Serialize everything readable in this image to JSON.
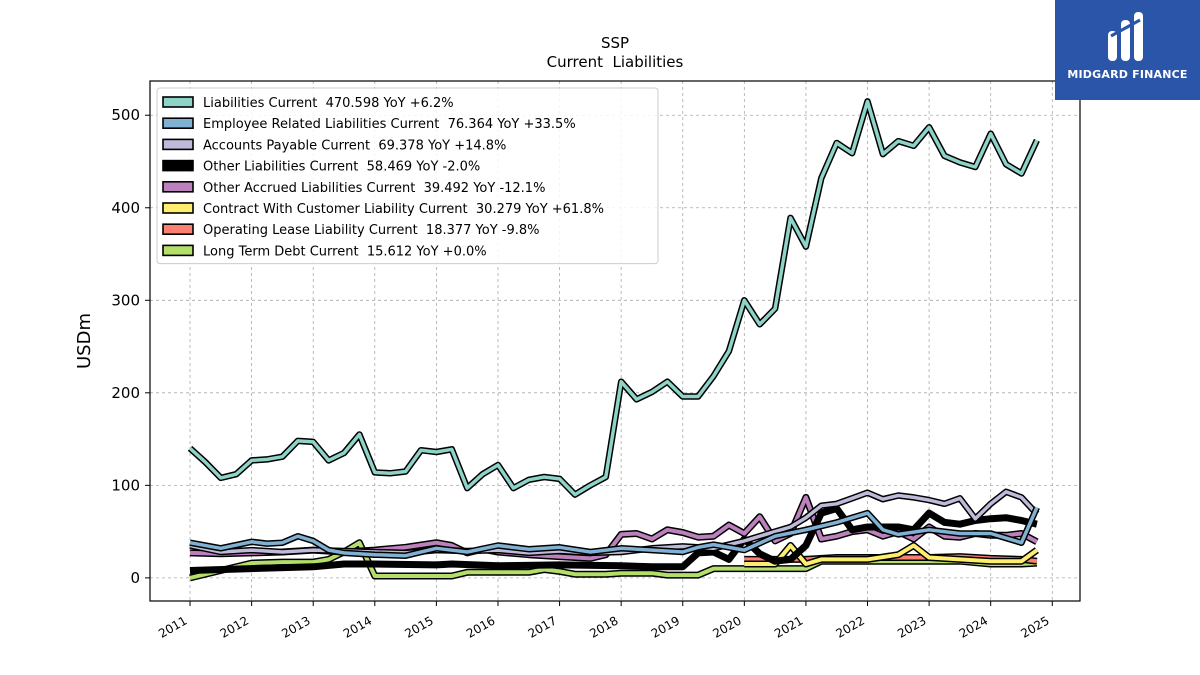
{
  "brand": {
    "name": "MIDGARD FINANCE",
    "color": "#2a55a8"
  },
  "chart_data": {
    "type": "line",
    "title": "SSP",
    "subtitle": "Current  Liabilities",
    "xlabel": "",
    "ylabel": "USDm",
    "xlim": [
      2010.35,
      2025.45
    ],
    "ylim": [
      -25,
      537
    ],
    "xticks": [
      "2011",
      "2012",
      "2013",
      "2014",
      "2015",
      "2016",
      "2017",
      "2018",
      "2019",
      "2020",
      "2021",
      "2022",
      "2023",
      "2024",
      "2025"
    ],
    "yticks": [
      "0",
      "100",
      "200",
      "300",
      "400",
      "500"
    ],
    "grid": true,
    "legend_position": "top-left",
    "series": [
      {
        "name": "Liabilities Current  470.598 YoY +6.2%",
        "color": "#8dd3c7",
        "points": [
          [
            2011.0,
            140
          ],
          [
            2011.25,
            125
          ],
          [
            2011.5,
            108
          ],
          [
            2011.75,
            112
          ],
          [
            2012.0,
            127
          ],
          [
            2012.25,
            128
          ],
          [
            2012.5,
            131
          ],
          [
            2012.75,
            148
          ],
          [
            2013.0,
            147
          ],
          [
            2013.25,
            127
          ],
          [
            2013.5,
            135
          ],
          [
            2013.75,
            155
          ],
          [
            2014.0,
            114
          ],
          [
            2014.25,
            113
          ],
          [
            2014.5,
            115
          ],
          [
            2014.75,
            138
          ],
          [
            2015.0,
            136
          ],
          [
            2015.25,
            139
          ],
          [
            2015.5,
            97
          ],
          [
            2015.75,
            112
          ],
          [
            2016.0,
            122
          ],
          [
            2016.25,
            97
          ],
          [
            2016.5,
            106
          ],
          [
            2016.75,
            109
          ],
          [
            2017.0,
            107
          ],
          [
            2017.25,
            90
          ],
          [
            2017.5,
            100
          ],
          [
            2017.75,
            109
          ],
          [
            2018.0,
            212
          ],
          [
            2018.25,
            193
          ],
          [
            2018.5,
            201
          ],
          [
            2018.75,
            212
          ],
          [
            2019.0,
            196
          ],
          [
            2019.25,
            196
          ],
          [
            2019.5,
            218
          ],
          [
            2019.75,
            245
          ],
          [
            2020.0,
            300
          ],
          [
            2020.25,
            274
          ],
          [
            2020.5,
            291
          ],
          [
            2020.75,
            389
          ],
          [
            2021.0,
            358
          ],
          [
            2021.25,
            432
          ],
          [
            2021.5,
            470
          ],
          [
            2021.75,
            459
          ],
          [
            2022.0,
            515
          ],
          [
            2022.25,
            458
          ],
          [
            2022.5,
            472
          ],
          [
            2022.75,
            467
          ],
          [
            2023.0,
            487
          ],
          [
            2023.25,
            456
          ],
          [
            2023.5,
            449
          ],
          [
            2023.75,
            444
          ],
          [
            2024.0,
            480
          ],
          [
            2024.25,
            447
          ],
          [
            2024.5,
            437
          ],
          [
            2024.75,
            473
          ]
        ]
      },
      {
        "name": "Employee Related Liabilities Current  76.364 YoY +33.5%",
        "color": "#80b1d3",
        "points": [
          [
            2011.0,
            38
          ],
          [
            2011.5,
            32
          ],
          [
            2012.0,
            39
          ],
          [
            2012.25,
            37
          ],
          [
            2012.5,
            38
          ],
          [
            2012.75,
            45
          ],
          [
            2013.0,
            40
          ],
          [
            2013.25,
            30
          ],
          [
            2013.5,
            27
          ],
          [
            2014.0,
            25
          ],
          [
            2014.5,
            24
          ],
          [
            2015.0,
            32
          ],
          [
            2015.5,
            28
          ],
          [
            2016.0,
            35
          ],
          [
            2016.5,
            31
          ],
          [
            2017.0,
            33
          ],
          [
            2017.5,
            28
          ],
          [
            2018.0,
            32
          ],
          [
            2018.5,
            30
          ],
          [
            2019.0,
            28
          ],
          [
            2019.25,
            33
          ],
          [
            2019.5,
            36
          ],
          [
            2020.0,
            30
          ],
          [
            2020.5,
            45
          ],
          [
            2021.0,
            52
          ],
          [
            2021.5,
            60
          ],
          [
            2022.0,
            70
          ],
          [
            2022.25,
            52
          ],
          [
            2022.5,
            47
          ],
          [
            2023.0,
            52
          ],
          [
            2023.5,
            48
          ],
          [
            2024.0,
            48
          ],
          [
            2024.5,
            38
          ],
          [
            2024.75,
            76
          ]
        ]
      },
      {
        "name": "Accounts Payable Current  69.378 YoY +14.8%",
        "color": "#bebada",
        "points": [
          [
            2011.0,
            35
          ],
          [
            2011.5,
            28
          ],
          [
            2012.0,
            30
          ],
          [
            2012.5,
            28
          ],
          [
            2013.0,
            30
          ],
          [
            2013.5,
            29
          ],
          [
            2014.0,
            28
          ],
          [
            2014.5,
            27
          ],
          [
            2015.0,
            30
          ],
          [
            2015.5,
            29
          ],
          [
            2016.0,
            30
          ],
          [
            2016.5,
            27
          ],
          [
            2017.0,
            29
          ],
          [
            2017.5,
            27
          ],
          [
            2018.0,
            28
          ],
          [
            2018.5,
            32
          ],
          [
            2019.0,
            34
          ],
          [
            2019.5,
            32
          ],
          [
            2020.0,
            40
          ],
          [
            2020.25,
            45
          ],
          [
            2020.5,
            50
          ],
          [
            2020.75,
            55
          ],
          [
            2021.0,
            65
          ],
          [
            2021.25,
            78
          ],
          [
            2021.5,
            80
          ],
          [
            2021.75,
            86
          ],
          [
            2022.0,
            92
          ],
          [
            2022.25,
            85
          ],
          [
            2022.5,
            89
          ],
          [
            2022.75,
            87
          ],
          [
            2023.0,
            84
          ],
          [
            2023.25,
            80
          ],
          [
            2023.5,
            86
          ],
          [
            2023.75,
            64
          ],
          [
            2024.0,
            80
          ],
          [
            2024.25,
            93
          ],
          [
            2024.5,
            87
          ],
          [
            2024.75,
            69
          ]
        ]
      },
      {
        "name": "Other Liabilities Current  58.469 YoY -2.0%",
        "color": "#000000",
        "points": [
          [
            2011.0,
            8
          ],
          [
            2012.0,
            10
          ],
          [
            2013.0,
            12
          ],
          [
            2013.5,
            15
          ],
          [
            2014.0,
            15
          ],
          [
            2015.0,
            14
          ],
          [
            2015.25,
            15
          ],
          [
            2016.0,
            13
          ],
          [
            2017.0,
            14
          ],
          [
            2018.0,
            13
          ],
          [
            2018.5,
            12
          ],
          [
            2019.0,
            12
          ],
          [
            2019.25,
            27
          ],
          [
            2019.5,
            28
          ],
          [
            2019.75,
            20
          ],
          [
            2020.0,
            42
          ],
          [
            2020.25,
            26
          ],
          [
            2020.5,
            18
          ],
          [
            2020.75,
            20
          ],
          [
            2021.0,
            35
          ],
          [
            2021.25,
            70
          ],
          [
            2021.5,
            75
          ],
          [
            2021.75,
            52
          ],
          [
            2022.0,
            55
          ],
          [
            2022.5,
            55
          ],
          [
            2022.75,
            52
          ],
          [
            2023.0,
            70
          ],
          [
            2023.25,
            60
          ],
          [
            2023.5,
            58
          ],
          [
            2023.75,
            62
          ],
          [
            2024.0,
            64
          ],
          [
            2024.25,
            65
          ],
          [
            2024.5,
            62
          ],
          [
            2024.75,
            58
          ]
        ]
      },
      {
        "name": "Other Accrued Liabilities Current  39.492 YoY -12.1%",
        "color": "#bc80bd",
        "points": [
          [
            2011.0,
            27
          ],
          [
            2011.5,
            26
          ],
          [
            2012.0,
            27
          ],
          [
            2012.5,
            28
          ],
          [
            2013.0,
            30
          ],
          [
            2013.5,
            28
          ],
          [
            2014.0,
            30
          ],
          [
            2014.5,
            33
          ],
          [
            2015.0,
            38
          ],
          [
            2015.25,
            35
          ],
          [
            2015.5,
            27
          ],
          [
            2015.75,
            31
          ],
          [
            2016.0,
            28
          ],
          [
            2016.5,
            25
          ],
          [
            2017.0,
            23
          ],
          [
            2017.5,
            21
          ],
          [
            2017.75,
            25
          ],
          [
            2018.0,
            47
          ],
          [
            2018.25,
            48
          ],
          [
            2018.5,
            42
          ],
          [
            2018.75,
            52
          ],
          [
            2019.0,
            49
          ],
          [
            2019.25,
            44
          ],
          [
            2019.5,
            45
          ],
          [
            2019.75,
            57
          ],
          [
            2020.0,
            48
          ],
          [
            2020.25,
            66
          ],
          [
            2020.5,
            40
          ],
          [
            2020.75,
            48
          ],
          [
            2021.0,
            87
          ],
          [
            2021.25,
            42
          ],
          [
            2021.5,
            45
          ],
          [
            2021.75,
            50
          ],
          [
            2022.0,
            52
          ],
          [
            2022.25,
            45
          ],
          [
            2022.5,
            50
          ],
          [
            2022.75,
            42
          ],
          [
            2023.0,
            55
          ],
          [
            2023.25,
            45
          ],
          [
            2023.5,
            44
          ],
          [
            2023.75,
            48
          ],
          [
            2024.0,
            46
          ],
          [
            2024.25,
            46
          ],
          [
            2024.5,
            48
          ],
          [
            2024.75,
            39
          ]
        ]
      },
      {
        "name": "Contract With Customer Liability Current  30.279 YoY +61.8%",
        "color": "#ffed6f",
        "points": [
          [
            2020.0,
            15
          ],
          [
            2020.25,
            15
          ],
          [
            2020.5,
            15
          ],
          [
            2020.75,
            35
          ],
          [
            2021.0,
            15
          ],
          [
            2021.25,
            20
          ],
          [
            2022.0,
            20
          ],
          [
            2022.5,
            25
          ],
          [
            2022.75,
            35
          ],
          [
            2023.0,
            22
          ],
          [
            2023.5,
            20
          ],
          [
            2024.0,
            18
          ],
          [
            2024.5,
            18
          ],
          [
            2024.75,
            30
          ]
        ]
      },
      {
        "name": "Operating Lease Liability Current  18.377 YoY -9.8%",
        "color": "#fb8072",
        "points": [
          [
            2020.0,
            20
          ],
          [
            2020.5,
            20
          ],
          [
            2021.0,
            20
          ],
          [
            2021.5,
            22
          ],
          [
            2022.0,
            22
          ],
          [
            2022.5,
            22
          ],
          [
            2023.0,
            22
          ],
          [
            2023.5,
            23
          ],
          [
            2024.0,
            21
          ],
          [
            2024.5,
            20
          ],
          [
            2024.75,
            18
          ]
        ]
      },
      {
        "name": "Long Term Debt Current  15.612 YoY +0.0%",
        "color": "#b3de69",
        "points": [
          [
            2011.0,
            0
          ],
          [
            2011.5,
            8
          ],
          [
            2012.0,
            16
          ],
          [
            2012.5,
            17
          ],
          [
            2013.0,
            17
          ],
          [
            2013.25,
            20
          ],
          [
            2013.5,
            28
          ],
          [
            2013.75,
            38
          ],
          [
            2014.0,
            2
          ],
          [
            2014.5,
            2
          ],
          [
            2015.0,
            2
          ],
          [
            2015.25,
            2
          ],
          [
            2015.5,
            6
          ],
          [
            2016.0,
            6
          ],
          [
            2016.5,
            6
          ],
          [
            2016.75,
            9
          ],
          [
            2017.0,
            7
          ],
          [
            2017.25,
            4
          ],
          [
            2017.5,
            4
          ],
          [
            2017.75,
            4
          ],
          [
            2018.0,
            5
          ],
          [
            2018.5,
            5
          ],
          [
            2018.75,
            3
          ],
          [
            2019.0,
            3
          ],
          [
            2019.25,
            3
          ],
          [
            2019.5,
            10
          ],
          [
            2020.0,
            10
          ],
          [
            2020.5,
            10
          ],
          [
            2021.0,
            10
          ],
          [
            2021.25,
            18
          ],
          [
            2021.5,
            18
          ],
          [
            2022.0,
            18
          ],
          [
            2022.5,
            18
          ],
          [
            2023.0,
            18
          ],
          [
            2023.5,
            18
          ],
          [
            2024.0,
            15
          ],
          [
            2024.5,
            15
          ],
          [
            2024.75,
            16
          ]
        ]
      }
    ]
  }
}
